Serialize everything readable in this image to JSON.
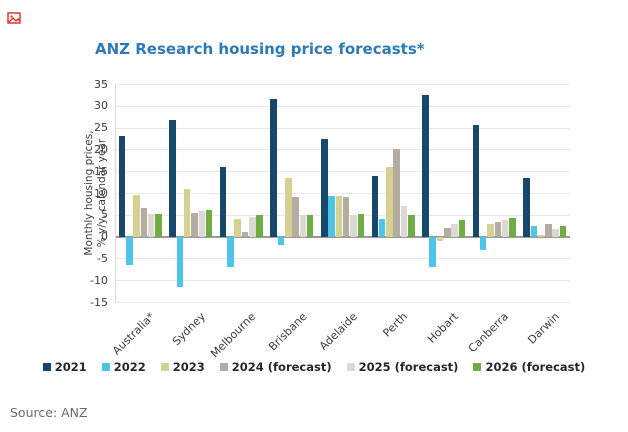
{
  "page": {
    "source_note": "Source: ANZ"
  },
  "colors": {
    "title": "#2d7ab5",
    "source_text": "#6b6b6b",
    "grid": "#e9e9e9",
    "zero_axis": "#9a9a9a",
    "axis_line": "#d9d9d9",
    "tick_text": "#3c3c3c",
    "broken_image_icon": "#d93025"
  },
  "chart_data": {
    "type": "bar",
    "title": "ANZ Research housing price forecasts*",
    "ylabel_lines": [
      "Monthly housing prices,",
      "% y/y, calendar year"
    ],
    "ylim": [
      -15,
      35
    ],
    "ytick_step": 5,
    "grid": true,
    "legend_position": "bottom",
    "categories": [
      "Australia*",
      "Sydney",
      "Melbourne",
      "Brisbane",
      "Adelaide",
      "Perth",
      "Hobart",
      "Canberra",
      "Darwin"
    ],
    "series": [
      {
        "name": "2021",
        "color": "#17486b",
        "values": [
          23,
          26.8,
          16,
          31.5,
          22.3,
          14,
          32.5,
          25.5,
          13.5
        ]
      },
      {
        "name": "2022",
        "color": "#4ec5e8",
        "values": [
          -6.5,
          -11.5,
          -7,
          -2,
          9.3,
          4,
          -7,
          -3,
          2.5
        ]
      },
      {
        "name": "2023",
        "color": "#d6d193",
        "values": [
          9.5,
          11,
          4,
          13.5,
          9.2,
          16,
          -1,
          3,
          0.3
        ]
      },
      {
        "name": "2024 (forecast)",
        "color": "#b3ada1",
        "values": [
          6.5,
          5.3,
          1,
          9,
          9,
          20,
          2,
          3.3,
          3
        ]
      },
      {
        "name": "2025 (forecast)",
        "color": "#dbd9d4",
        "values": [
          5.2,
          5.8,
          4.5,
          5,
          5,
          7,
          3,
          3.7,
          1.8
        ]
      },
      {
        "name": "2026 (forecast)",
        "color": "#6fad44",
        "values": [
          5.2,
          6,
          4.9,
          5,
          5.2,
          5,
          3.9,
          4.2,
          2.5
        ]
      }
    ]
  }
}
